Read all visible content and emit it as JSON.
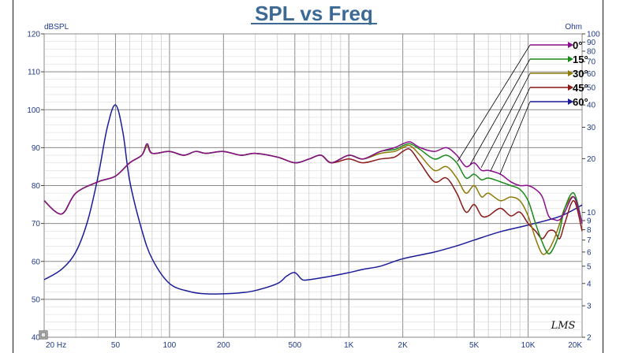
{
  "chart_data": {
    "type": "line",
    "title": "SPL vs Freq",
    "left_axis": {
      "label": "dBSPL",
      "ticks": [
        40,
        50,
        60,
        70,
        80,
        90,
        100,
        110,
        120
      ],
      "tick_labels": [
        "40",
        "50",
        "60",
        "70",
        "80",
        "90",
        "100",
        "110",
        "120"
      ],
      "range": [
        40,
        120
      ]
    },
    "right_axis": {
      "label": "Ohm",
      "scale": "log",
      "ticks": [
        2,
        3,
        4,
        5,
        6,
        7,
        8,
        9,
        10,
        20,
        30,
        40,
        50,
        60,
        70,
        80,
        90,
        100
      ],
      "tick_labels": [
        "2",
        "3",
        "4",
        "5",
        "6",
        "7",
        "8",
        "9",
        "10",
        "20",
        "30",
        "40",
        "50",
        "60",
        "70",
        "80",
        "90",
        "100"
      ],
      "range": [
        2,
        100
      ]
    },
    "x_axis": {
      "scale": "log",
      "range": [
        20,
        20000
      ],
      "ticks": [
        20,
        50,
        100,
        200,
        500,
        1000,
        2000,
        5000,
        10000,
        20000
      ],
      "tick_labels": [
        "20 Hz",
        "50",
        "100",
        "200",
        "500",
        "1K",
        "2K",
        "5K",
        "10K",
        "20K"
      ]
    },
    "grid": true,
    "legend_placement": "top-right",
    "series": [
      {
        "name": "0°",
        "color": "#8b0f8b",
        "axis": "left",
        "x": [
          20,
          25,
          30,
          40,
          50,
          60,
          70,
          75,
          80,
          100,
          120,
          140,
          160,
          200,
          250,
          300,
          400,
          500,
          600,
          700,
          800,
          1000,
          1200,
          1500,
          1800,
          2000,
          2200,
          2500,
          3000,
          3500,
          4000,
          4500,
          5000,
          5500,
          6000,
          7000,
          8000,
          9000,
          10000,
          11000,
          12000,
          13000,
          14000,
          15000,
          16000,
          18000,
          20000
        ],
        "y": [
          76,
          72.5,
          78,
          81,
          82.5,
          86,
          88,
          91,
          88.5,
          89,
          88,
          89,
          88.5,
          89,
          88,
          88.5,
          87.5,
          86,
          87,
          88,
          86,
          88,
          87,
          89,
          90,
          91,
          91.5,
          90,
          89,
          90,
          88,
          85,
          86,
          84,
          84,
          83,
          81,
          80,
          80,
          79,
          77,
          72,
          71,
          71,
          73,
          77,
          70
        ]
      },
      {
        "name": "15°",
        "color": "#1a8a1a",
        "axis": "left",
        "x": [
          20,
          25,
          30,
          40,
          50,
          60,
          70,
          75,
          80,
          100,
          120,
          140,
          160,
          200,
          250,
          300,
          400,
          500,
          600,
          700,
          800,
          1000,
          1200,
          1500,
          1800,
          2000,
          2200,
          2500,
          3000,
          3500,
          4000,
          4500,
          5000,
          5500,
          6000,
          7000,
          8000,
          9000,
          10000,
          11000,
          12000,
          13000,
          14000,
          15000,
          16000,
          18000,
          20000
        ],
        "y": [
          76,
          72.5,
          78,
          81,
          82.5,
          86,
          88,
          91,
          88.5,
          89,
          88,
          89,
          88.5,
          89,
          88,
          88.5,
          87.5,
          86,
          87,
          88,
          86,
          88,
          87,
          89,
          89.5,
          90.5,
          91,
          89.5,
          87,
          88,
          86,
          82,
          83,
          81.5,
          82,
          81,
          80,
          79,
          76,
          70,
          65,
          62,
          64,
          68,
          74,
          78,
          70
        ]
      },
      {
        "name": "30°",
        "color": "#8e7a06",
        "axis": "left",
        "x": [
          20,
          25,
          30,
          40,
          50,
          60,
          70,
          75,
          80,
          100,
          120,
          140,
          160,
          200,
          250,
          300,
          400,
          500,
          600,
          700,
          800,
          1000,
          1200,
          1500,
          1800,
          2000,
          2200,
          2500,
          3000,
          3500,
          4000,
          4500,
          5000,
          5500,
          6000,
          7000,
          8000,
          9000,
          10000,
          11000,
          12000,
          13000,
          14000,
          15000,
          16000,
          18000,
          20000
        ],
        "y": [
          76,
          72.5,
          78,
          81,
          82.5,
          86,
          88,
          90.5,
          88.5,
          89,
          88,
          89,
          88.5,
          89,
          88,
          88.5,
          87.5,
          86,
          87,
          88,
          86,
          88,
          87,
          88.5,
          89,
          90,
          90.5,
          88,
          84,
          85,
          82,
          78,
          80,
          77,
          78,
          76,
          77,
          76,
          72,
          66,
          62,
          63,
          66,
          70,
          74,
          77,
          70
        ]
      },
      {
        "name": "45°",
        "color": "#8b1a1a",
        "axis": "left",
        "x": [
          20,
          25,
          30,
          40,
          50,
          60,
          70,
          75,
          80,
          100,
          120,
          140,
          160,
          200,
          250,
          300,
          400,
          500,
          600,
          700,
          800,
          1000,
          1200,
          1500,
          1800,
          2000,
          2200,
          2500,
          3000,
          3500,
          4000,
          4500,
          5000,
          5500,
          6000,
          7000,
          8000,
          9000,
          10000,
          11000,
          12000,
          13000,
          14000,
          15000,
          16000,
          18000,
          20000
        ],
        "y": [
          76,
          72.5,
          78,
          81,
          82.5,
          86,
          88,
          90.5,
          88.5,
          89,
          88,
          89,
          88.5,
          89,
          88,
          88.5,
          87.5,
          86,
          87,
          88,
          86,
          87,
          86,
          87,
          87.5,
          89,
          89.5,
          86,
          81,
          82,
          78,
          73,
          75,
          72,
          72,
          74,
          72,
          73,
          70,
          68,
          66,
          68,
          68,
          66,
          70,
          76,
          68
        ]
      },
      {
        "name": "60°",
        "color": "#1c1c9a",
        "axis": "right",
        "x": [
          20,
          25,
          30,
          35,
          40,
          45,
          50,
          55,
          60,
          70,
          80,
          100,
          130,
          160,
          200,
          250,
          300,
          400,
          450,
          500,
          550,
          600,
          700,
          800,
          1000,
          1200,
          1500,
          2000,
          3000,
          4000,
          5000,
          7000,
          10000,
          15000,
          20000
        ],
        "y": [
          4.2,
          4.8,
          6.0,
          9.0,
          16,
          30,
          40,
          28,
          15,
          8,
          5.5,
          4.0,
          3.6,
          3.5,
          3.5,
          3.55,
          3.65,
          4.0,
          4.4,
          4.6,
          4.2,
          4.2,
          4.3,
          4.4,
          4.6,
          4.8,
          5.0,
          5.5,
          6.0,
          6.5,
          7.0,
          7.8,
          8.5,
          9.5,
          11
        ]
      }
    ],
    "watermark": "LMS"
  }
}
